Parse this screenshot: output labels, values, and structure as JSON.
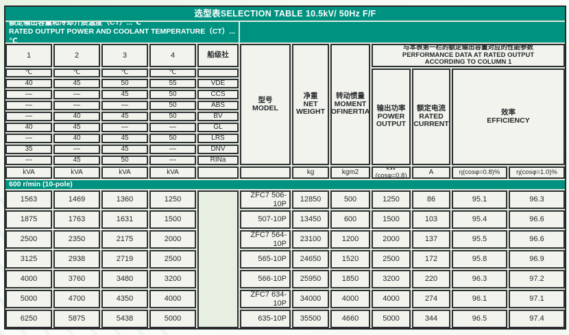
{
  "title": "选型表SELECTION TABLE 10.5kV/ 50Hz  F/F",
  "subtitle": {
    "cn": "额定输出容量和冷却介质温度（CT）...℃",
    "en": "RATED OUTPUT POWER AND COOLANT TEMPERATURE（CT）...℃"
  },
  "left_table": {
    "col_headers": [
      "1",
      "2",
      "3",
      "4"
    ],
    "society_header": "船级社",
    "celsius_units": [
      "℃",
      "℃",
      "℃",
      "℃"
    ],
    "kva_units": [
      "kVA",
      "kVA",
      "kVA",
      "kVA"
    ],
    "rows": [
      {
        "values": [
          "40",
          "45",
          "50",
          "55"
        ],
        "society": "VDE"
      },
      {
        "values": [
          "—",
          "—",
          "45",
          "50"
        ],
        "society": "CCS"
      },
      {
        "values": [
          "—",
          "—",
          "—",
          "50"
        ],
        "society": "ABS"
      },
      {
        "values": [
          "—",
          "40",
          "45",
          "50"
        ],
        "society": "BV"
      },
      {
        "values": [
          "40",
          "45",
          "—",
          "—"
        ],
        "society": "GL"
      },
      {
        "values": [
          "—",
          "40",
          "45",
          "50"
        ],
        "society": "LRS"
      },
      {
        "values": [
          "35",
          "—",
          "45",
          "—"
        ],
        "society": "DNV"
      },
      {
        "values": [
          "—",
          "45",
          "50",
          "—"
        ],
        "society": "RINa"
      }
    ]
  },
  "right_table": {
    "performance_header": "与本表第一栏的额定输出容量对应的性能参数\nPERFORMANCE DATA AT RATED OUTPUT\nACCORDING TO COLUMN 1",
    "model_header": "型号\nMODEL",
    "net_weight_header": "净重\nNET\nWEIGHT",
    "inertia_header": "转动惯量\nMOMENT\nOFINERTIA",
    "power_header": "输出功率\nPOWER\nOUTPUT",
    "current_header": "额定电流\nRATED\nCURRENT",
    "efficiency_header": "效率\nEFFICIENCY",
    "units": {
      "weight": "kg",
      "inertia": "kgm2",
      "power": "kW\n(cosφ=0.8)",
      "current": "A",
      "eff08": "η(cosφ=0.8)%",
      "eff10": "η(cosφ=1.0)%"
    }
  },
  "speed_band": "600 r/min (10-pole)",
  "data_rows": [
    {
      "kva": [
        "1563",
        "1469",
        "1360",
        "1250"
      ],
      "model": "ZFC7 506-10P",
      "weight": "12850",
      "inertia": "500",
      "power": "1250",
      "current": "86",
      "eff08": "95.1",
      "eff10": "96.3"
    },
    {
      "kva": [
        "1875",
        "1763",
        "1631",
        "1500"
      ],
      "model": "507-10P",
      "weight": "13450",
      "inertia": "600",
      "power": "1500",
      "current": "103",
      "eff08": "95.4",
      "eff10": "96.6"
    },
    {
      "kva": [
        "2500",
        "2350",
        "2175",
        "2000"
      ],
      "model": "ZFC7 564-10P",
      "weight": "23100",
      "inertia": "1200",
      "power": "2000",
      "current": "137",
      "eff08": "95.5",
      "eff10": "96.6"
    },
    {
      "kva": [
        "3125",
        "2938",
        "2719",
        "2500"
      ],
      "model": "565-10P",
      "weight": "24650",
      "inertia": "1520",
      "power": "2500",
      "current": "172",
      "eff08": "95.8",
      "eff10": "96.9"
    },
    {
      "kva": [
        "4000",
        "3760",
        "3480",
        "3200"
      ],
      "model": "566-10P",
      "weight": "25950",
      "inertia": "1850",
      "power": "3200",
      "current": "220",
      "eff08": "96.3",
      "eff10": "97.2"
    },
    {
      "kva": [
        "5000",
        "4700",
        "4350",
        "4000"
      ],
      "model": "ZFC7 634-10P",
      "weight": "34000",
      "inertia": "4000",
      "power": "4000",
      "current": "274",
      "eff08": "96.1",
      "eff10": "97.1"
    },
    {
      "kva": [
        "6250",
        "5875",
        "5438",
        "5000"
      ],
      "model": "635-10P",
      "weight": "35500",
      "inertia": "4660",
      "power": "5000",
      "current": "344",
      "eff08": "96.5",
      "eff10": "97.4"
    }
  ],
  "colors": {
    "teal": "#009280",
    "cell_bg": "#f1f3ec",
    "border": "#2b2f31"
  }
}
